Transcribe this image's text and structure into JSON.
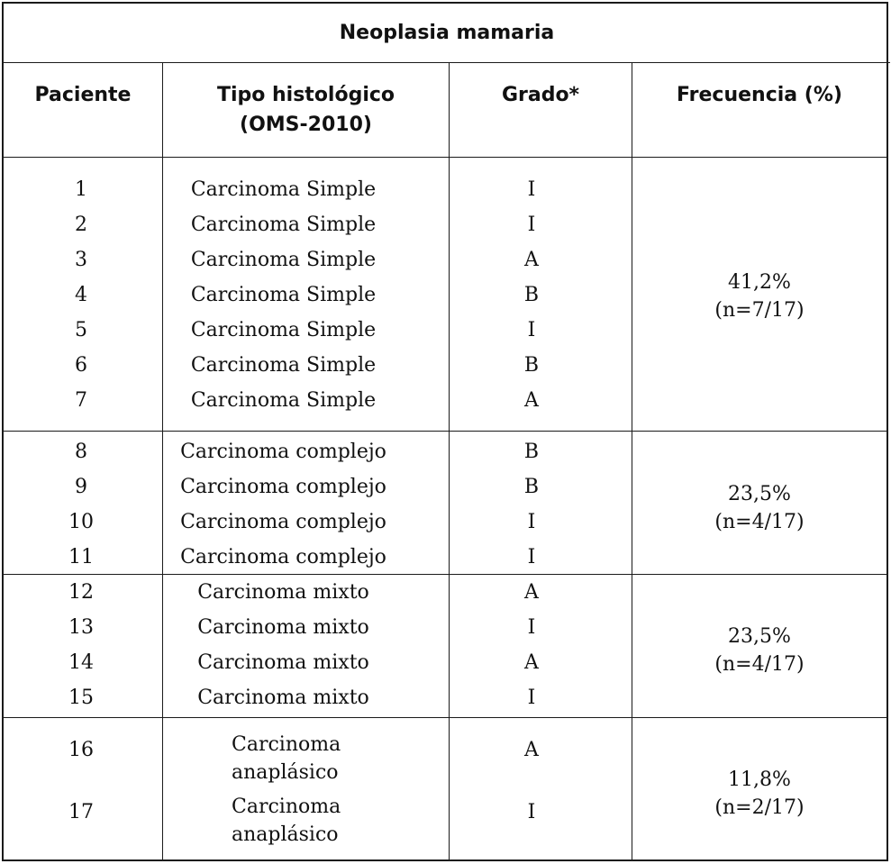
{
  "title": "Neoplasia mamaria",
  "headers": {
    "paciente": "Paciente",
    "tipo": "Tipo histológico\n(OMS-2010)",
    "grado": "Grado*",
    "frecuencia": "Frecuencia (%)"
  },
  "rows": [
    {
      "paciente": "1",
      "tipo": "Carcinoma Simple",
      "grado": "I"
    },
    {
      "paciente": "2",
      "tipo": "Carcinoma Simple",
      "grado": "I"
    },
    {
      "paciente": "3",
      "tipo": "Carcinoma Simple",
      "grado": "A"
    },
    {
      "paciente": "4",
      "tipo": "Carcinoma Simple",
      "grado": "B"
    },
    {
      "paciente": "5",
      "tipo": "Carcinoma Simple",
      "grado": "I"
    },
    {
      "paciente": "6",
      "tipo": "Carcinoma Simple",
      "grado": "B"
    },
    {
      "paciente": "7",
      "tipo": "Carcinoma Simple",
      "grado": "A"
    },
    {
      "paciente": "8",
      "tipo": "Carcinoma complejo",
      "grado": "B"
    },
    {
      "paciente": "9",
      "tipo": "Carcinoma complejo",
      "grado": "B"
    },
    {
      "paciente": "10",
      "tipo": "Carcinoma complejo",
      "grado": "I"
    },
    {
      "paciente": "11",
      "tipo": "Carcinoma complejo",
      "grado": "I"
    },
    {
      "paciente": "12",
      "tipo": "Carcinoma mixto",
      "grado": "A"
    },
    {
      "paciente": "13",
      "tipo": "Carcinoma mixto",
      "grado": "I"
    },
    {
      "paciente": "14",
      "tipo": "Carcinoma mixto",
      "grado": "A"
    },
    {
      "paciente": "15",
      "tipo": "Carcinoma mixto",
      "grado": "I"
    },
    {
      "paciente": "16",
      "tipo": "Carcinoma\nanaplásico",
      "grado": "A"
    },
    {
      "paciente": "17",
      "tipo": "Carcinoma\nanaplásico",
      "grado": "I"
    }
  ],
  "groups": [
    {
      "frecuencia": "41,2%\n(n=7/17)"
    },
    {
      "frecuencia": "23,5%\n(n=4/17)"
    },
    {
      "frecuencia": "23,5%\n(n=4/17)"
    },
    {
      "frecuencia": "11,8%\n(n=2/17)"
    }
  ]
}
